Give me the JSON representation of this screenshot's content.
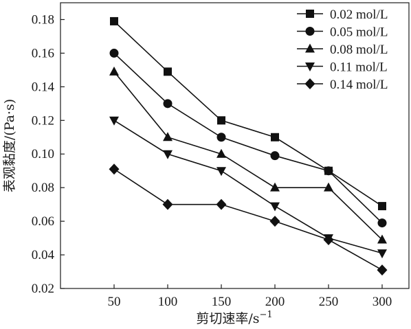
{
  "chart_data": {
    "type": "line",
    "title": "",
    "xlabel": "剪切速率/s",
    "xlabel_superscript": "−1",
    "ylabel": "表观黏度/(Pa·s)",
    "x": [
      50,
      100,
      150,
      200,
      250,
      300
    ],
    "x_ticks": [
      "50",
      "100",
      "150",
      "200",
      "250",
      "300"
    ],
    "xlim": [
      0,
      325
    ],
    "y_ticks": [
      "0.02",
      "0.04",
      "0.06",
      "0.08",
      "0.10",
      "0.12",
      "0.14",
      "0.16",
      "0.18"
    ],
    "ylim": [
      0.02,
      0.19
    ],
    "grid": false,
    "legend_position": "top-right",
    "series": [
      {
        "name": "0.02 mol/L",
        "marker": "square",
        "values": [
          0.179,
          0.149,
          0.12,
          0.11,
          0.09,
          0.069
        ]
      },
      {
        "name": "0.05 mol/L",
        "marker": "circle",
        "values": [
          0.16,
          0.13,
          0.11,
          0.099,
          0.09,
          0.059
        ]
      },
      {
        "name": "0.08 mol/L",
        "marker": "triangle-up",
        "values": [
          0.149,
          0.11,
          0.1,
          0.08,
          0.08,
          0.049
        ]
      },
      {
        "name": "0.11 mol/L",
        "marker": "triangle-down",
        "values": [
          0.12,
          0.1,
          0.09,
          0.069,
          0.05,
          0.041
        ]
      },
      {
        "name": "0.14 mol/L",
        "marker": "diamond",
        "values": [
          0.091,
          0.07,
          0.07,
          0.06,
          0.049,
          0.031
        ]
      }
    ]
  }
}
